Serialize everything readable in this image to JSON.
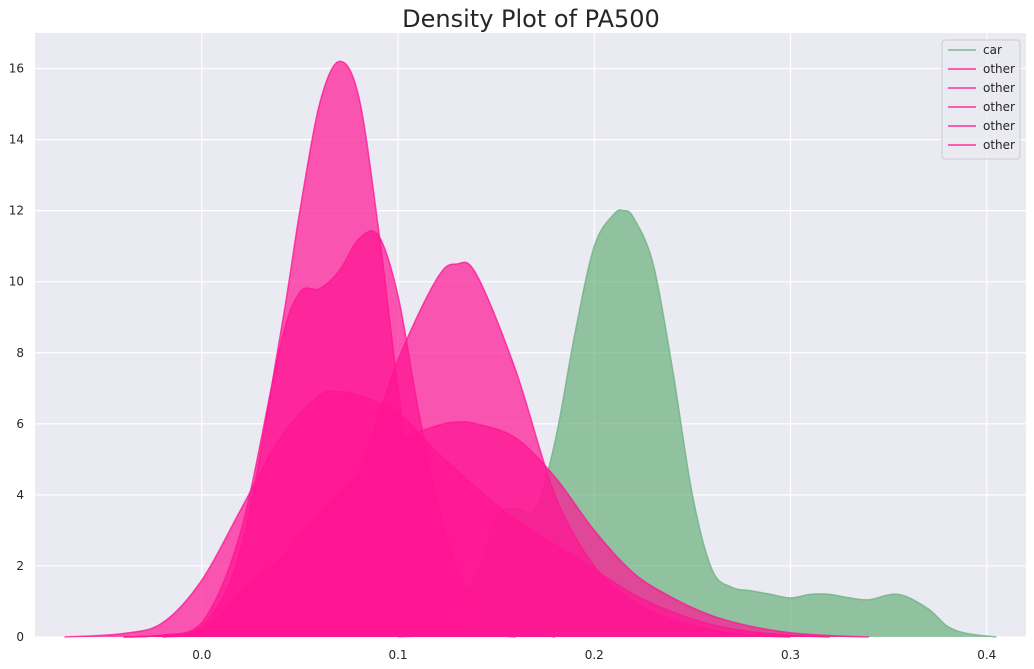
{
  "chart_data": {
    "type": "area",
    "title": "Density Plot of PA500",
    "xlabel": "",
    "ylabel": "",
    "xlim": [
      -0.085,
      0.42
    ],
    "ylim": [
      0,
      17
    ],
    "x_ticks": [
      0.0,
      0.1,
      0.2,
      0.3,
      0.4
    ],
    "x_tick_labels": [
      "0.0",
      "0.1",
      "0.2",
      "0.3",
      "0.4"
    ],
    "y_ticks": [
      0,
      2,
      4,
      6,
      8,
      10,
      12,
      14,
      16
    ],
    "y_tick_labels": [
      "0",
      "2",
      "4",
      "6",
      "8",
      "10",
      "12",
      "14",
      "16"
    ],
    "grid": true,
    "background": "#EAEAF2",
    "legend_position": "top-right",
    "colors": {
      "car": "#6BB07E",
      "other": "#FF1493"
    },
    "series": [
      {
        "name": "car",
        "color": "#6BB07E",
        "x": [
          0.1,
          0.12,
          0.14,
          0.15,
          0.16,
          0.17,
          0.18,
          0.19,
          0.2,
          0.21,
          0.215,
          0.22,
          0.23,
          0.24,
          0.25,
          0.26,
          0.27,
          0.28,
          0.29,
          0.3,
          0.31,
          0.32,
          0.33,
          0.34,
          0.355,
          0.37,
          0.38,
          0.39,
          0.405
        ],
        "values": [
          0.0,
          0.1,
          1.8,
          3.4,
          3.6,
          3.6,
          5.5,
          8.5,
          11.0,
          11.9,
          12.0,
          11.8,
          10.5,
          7.5,
          4.0,
          1.9,
          1.4,
          1.3,
          1.2,
          1.1,
          1.2,
          1.2,
          1.1,
          1.05,
          1.2,
          0.8,
          0.3,
          0.1,
          0.0
        ]
      },
      {
        "name": "other",
        "color": "#FF1493",
        "x": [
          -0.04,
          -0.02,
          0.0,
          0.02,
          0.04,
          0.05,
          0.06,
          0.07,
          0.08,
          0.09,
          0.1,
          0.11,
          0.12,
          0.13,
          0.14,
          0.16
        ],
        "values": [
          0.0,
          0.05,
          0.3,
          2.5,
          8.5,
          12.0,
          15.0,
          16.2,
          15.2,
          11.5,
          7.0,
          3.0,
          1.0,
          0.3,
          0.1,
          0.0
        ]
      },
      {
        "name": "other",
        "color": "#FF1493",
        "x": [
          -0.04,
          -0.02,
          0.0,
          0.02,
          0.04,
          0.05,
          0.06,
          0.07,
          0.08,
          0.09,
          0.1,
          0.11,
          0.12,
          0.13,
          0.14,
          0.15,
          0.18
        ],
        "values": [
          0.0,
          0.05,
          0.4,
          3.0,
          8.2,
          9.7,
          9.8,
          10.3,
          11.2,
          11.3,
          9.6,
          6.5,
          3.8,
          2.0,
          0.8,
          0.3,
          0.0
        ]
      },
      {
        "name": "other",
        "color": "#FF1493",
        "x": [
          -0.02,
          0.0,
          0.02,
          0.04,
          0.06,
          0.08,
          0.1,
          0.12,
          0.13,
          0.14,
          0.16,
          0.18,
          0.2,
          0.22,
          0.24,
          0.26,
          0.28,
          0.3
        ],
        "values": [
          0.0,
          0.1,
          1.3,
          2.2,
          3.2,
          4.7,
          7.8,
          10.1,
          10.5,
          10.2,
          7.5,
          4.0,
          2.0,
          1.0,
          0.5,
          0.2,
          0.05,
          0.0
        ]
      },
      {
        "name": "other",
        "color": "#FF1493",
        "x": [
          -0.07,
          -0.04,
          -0.02,
          0.0,
          0.02,
          0.04,
          0.06,
          0.07,
          0.08,
          0.1,
          0.12,
          0.14,
          0.16,
          0.18,
          0.2,
          0.22,
          0.24,
          0.26,
          0.28,
          0.3,
          0.32
        ],
        "values": [
          0.0,
          0.1,
          0.4,
          1.6,
          3.6,
          5.6,
          6.8,
          6.9,
          6.8,
          6.3,
          5.2,
          4.2,
          3.3,
          2.6,
          1.9,
          1.2,
          0.7,
          0.35,
          0.15,
          0.05,
          0.0
        ]
      },
      {
        "name": "other",
        "color": "#FF1493",
        "x": [
          -0.02,
          0.0,
          0.02,
          0.04,
          0.06,
          0.08,
          0.1,
          0.12,
          0.13,
          0.14,
          0.16,
          0.18,
          0.2,
          0.22,
          0.24,
          0.26,
          0.28,
          0.3,
          0.32,
          0.34
        ],
        "values": [
          0.0,
          0.2,
          1.0,
          2.2,
          3.5,
          4.6,
          5.5,
          5.95,
          6.05,
          6.0,
          5.6,
          4.5,
          3.0,
          1.8,
          1.1,
          0.6,
          0.3,
          0.12,
          0.04,
          0.0
        ]
      }
    ]
  }
}
